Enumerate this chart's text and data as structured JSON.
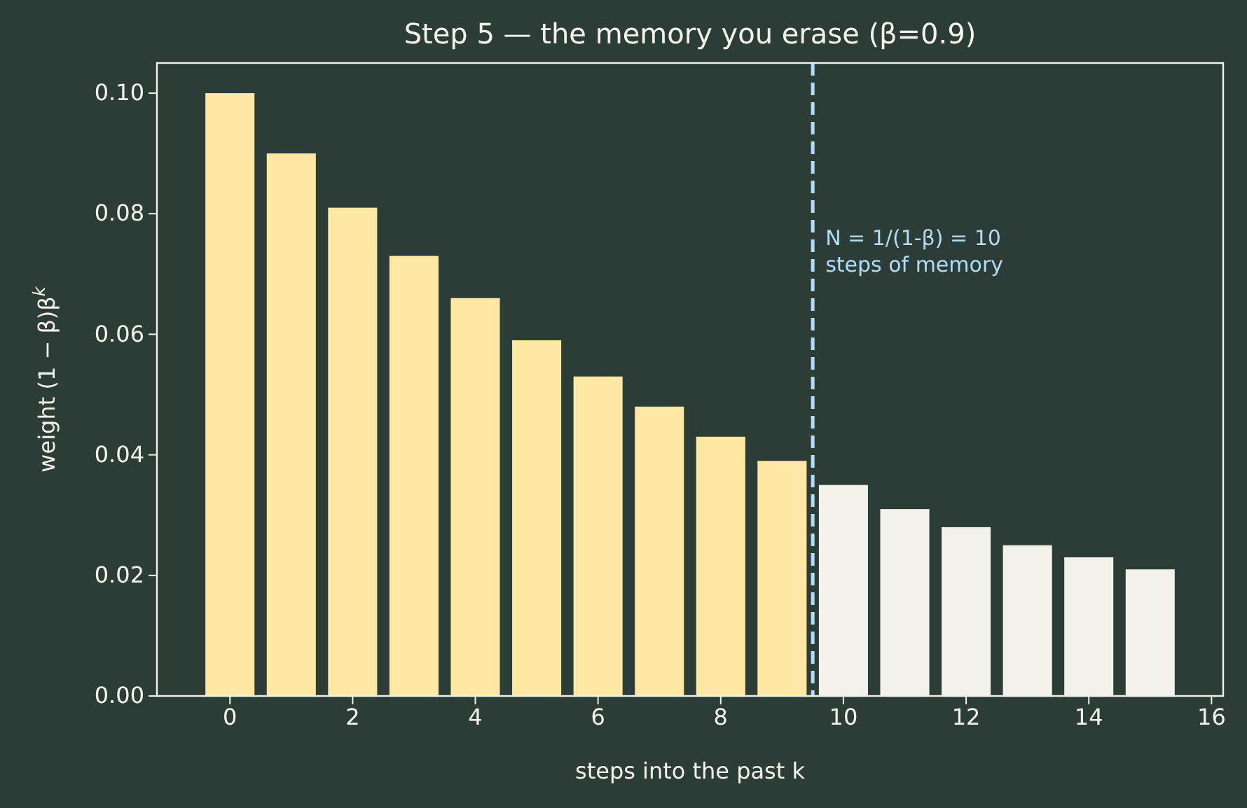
{
  "chart_data": {
    "type": "bar",
    "title": "Step 5 — the memory you erase (β=0.9)",
    "xlabel": "steps into the past  k",
    "ylabel": "weight  (1 − β)β$^{k}$",
    "x": [
      0,
      1,
      2,
      3,
      4,
      5,
      6,
      7,
      8,
      9,
      10,
      11,
      12,
      13,
      14,
      15
    ],
    "values": [
      0.1,
      0.09,
      0.081,
      0.073,
      0.066,
      0.059,
      0.053,
      0.048,
      0.043,
      0.039,
      0.035,
      0.031,
      0.028,
      0.025,
      0.023,
      0.021
    ],
    "colors": [
      "#ffe8a3",
      "#ffe8a3",
      "#ffe8a3",
      "#ffe8a3",
      "#ffe8a3",
      "#ffe8a3",
      "#ffe8a3",
      "#ffe8a3",
      "#ffe8a3",
      "#ffe8a3",
      "#f2f2ea",
      "#f2f2ea",
      "#f2f2ea",
      "#f2f2ea",
      "#f2f2ea",
      "#f2f2ea"
    ],
    "xlim": [
      -1.19,
      16.19
    ],
    "xticks": [
      0,
      2,
      4,
      6,
      8,
      10,
      12,
      14,
      16
    ],
    "ylim": [
      0,
      0.105
    ],
    "yticks": [
      {
        "value": 0,
        "label": "0.00"
      },
      {
        "value": 0.02,
        "label": "0.02"
      },
      {
        "value": 0.04,
        "label": "0.04"
      },
      {
        "value": 0.06,
        "label": "0.06"
      },
      {
        "value": 0.08,
        "label": "0.08"
      },
      {
        "value": 0.1,
        "label": "0.10"
      }
    ],
    "ref_lines": [
      {
        "axis": "x",
        "value": 9.5,
        "label": "N = 1/(1-β) = 10\nsteps of memory",
        "color": "#b3dcf5",
        "line_style": "dashed"
      }
    ],
    "grid": false
  }
}
